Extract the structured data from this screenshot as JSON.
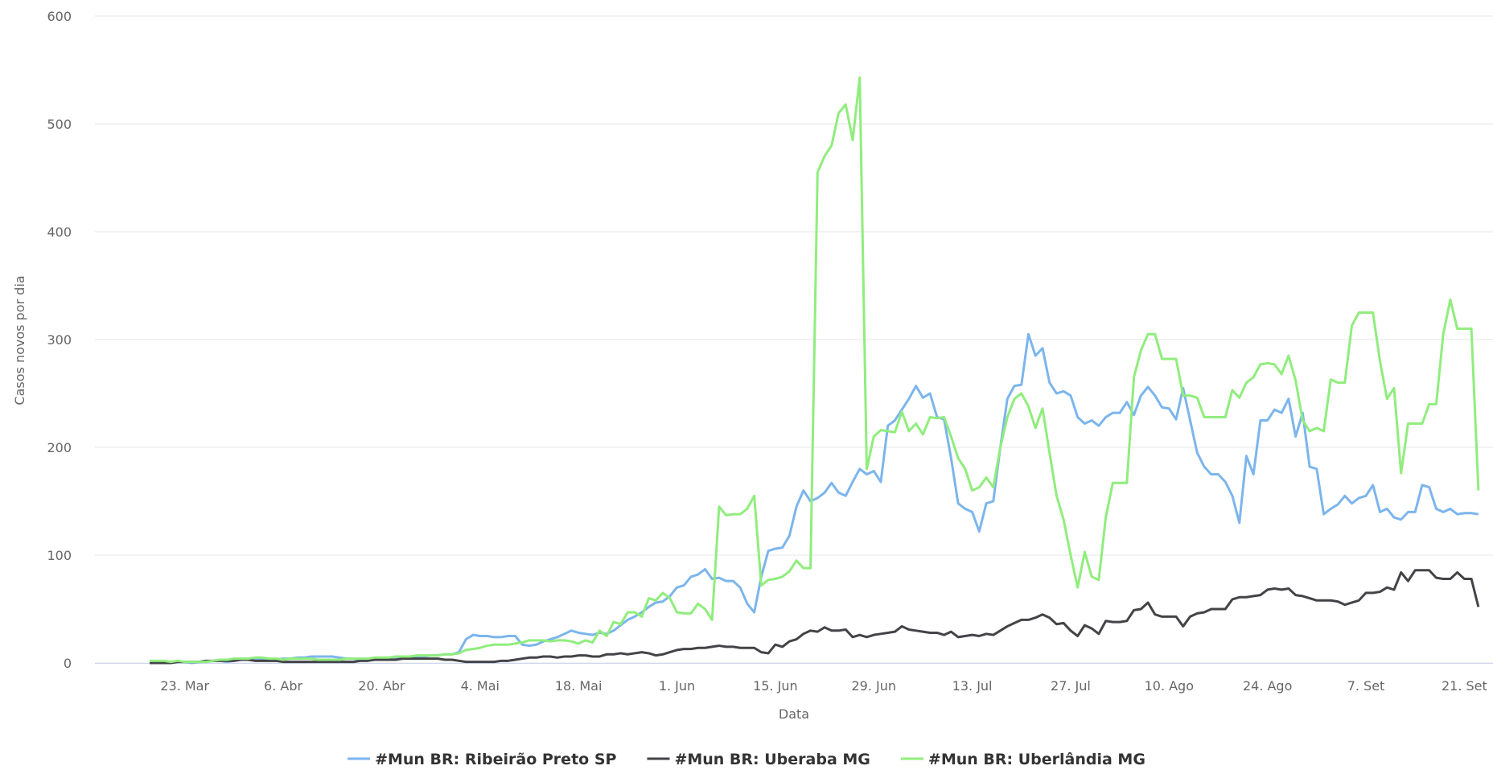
{
  "chart_data": {
    "type": "line",
    "y_axis_label": "Casos novos por dia",
    "x_axis_label": "Data",
    "ylim": [
      0,
      600
    ],
    "yticks": [
      0,
      100,
      200,
      300,
      400,
      500,
      600
    ],
    "grid": true,
    "legend": "bottom",
    "categories": [
      null,
      null,
      null,
      null,
      null,
      "23. Mar",
      null,
      null,
      null,
      null,
      null,
      null,
      null,
      null,
      null,
      null,
      null,
      null,
      null,
      "6. Abr",
      null,
      null,
      null,
      null,
      null,
      null,
      null,
      null,
      null,
      null,
      null,
      null,
      null,
      "20. Abr",
      null,
      null,
      null,
      null,
      null,
      null,
      null,
      null,
      null,
      null,
      null,
      null,
      null,
      "4. Mai",
      null,
      null,
      null,
      null,
      null,
      null,
      null,
      null,
      null,
      null,
      null,
      null,
      null,
      "18. Mai",
      null,
      null,
      null,
      null,
      null,
      null,
      null,
      null,
      null,
      null,
      null,
      null,
      null,
      "1. Jun",
      null,
      null,
      null,
      null,
      null,
      null,
      null,
      null,
      null,
      null,
      null,
      null,
      null,
      "15. Jun",
      null,
      null,
      null,
      null,
      null,
      null,
      null,
      null,
      null,
      null,
      null,
      null,
      null,
      "29. Jun",
      null,
      null,
      null,
      null,
      null,
      null,
      null,
      null,
      null,
      null,
      null,
      null,
      null,
      "13. Jul",
      null,
      null,
      null,
      null,
      null,
      null,
      null,
      null,
      null,
      null,
      null,
      null,
      null,
      "27. Jul",
      null,
      null,
      null,
      null,
      null,
      null,
      null,
      null,
      null,
      null,
      null,
      null,
      null,
      "10. Ago",
      null,
      null,
      null,
      null,
      null,
      null,
      null,
      null,
      null,
      null,
      null,
      null,
      null,
      "24. Ago",
      null,
      null,
      null,
      null,
      null,
      null,
      null,
      null,
      null,
      null,
      null,
      null,
      null,
      "7. Set",
      null,
      null,
      null,
      null,
      null,
      null,
      null,
      null,
      null,
      null,
      null,
      null,
      null,
      "21. Set",
      null,
      null
    ],
    "series": [
      {
        "name": "#Mun BR: Ribeirão Preto SP",
        "color": "#7cb5ec",
        "values": [
          0,
          0,
          0,
          1,
          1,
          1,
          0,
          1,
          1,
          2,
          2,
          1,
          2,
          3,
          3,
          4,
          3,
          2,
          3,
          4,
          4,
          5,
          5,
          6,
          6,
          6,
          6,
          5,
          4,
          4,
          3,
          3,
          4,
          4,
          4,
          5,
          5,
          6,
          6,
          6,
          7,
          7,
          8,
          8,
          10,
          22,
          26,
          25,
          25,
          24,
          24,
          25,
          25,
          17,
          16,
          17,
          20,
          22,
          24,
          27,
          30,
          28,
          27,
          26,
          28,
          27,
          30,
          35,
          40,
          43,
          47,
          52,
          56,
          57,
          62,
          70,
          72,
          80,
          82,
          87,
          78,
          79,
          76,
          76,
          70,
          55,
          47,
          80,
          104,
          106,
          107,
          118,
          145,
          160,
          150,
          153,
          158,
          167,
          158,
          155,
          168,
          180,
          175,
          178,
          168,
          220,
          225,
          235,
          245,
          257,
          246,
          250,
          228,
          226,
          190,
          148,
          143,
          140,
          122,
          148,
          150,
          200,
          245,
          257,
          258,
          305,
          285,
          292,
          260,
          250,
          252,
          248,
          228,
          222,
          225,
          220,
          228,
          232,
          232,
          242,
          230,
          248,
          256,
          248,
          237,
          236,
          226,
          255,
          225,
          195,
          182,
          175,
          175,
          168,
          155,
          130,
          192,
          175,
          225,
          225,
          235,
          232,
          245,
          210,
          232,
          182,
          180,
          138,
          143,
          147,
          155,
          148,
          153,
          155,
          165,
          140,
          143,
          135,
          133,
          140,
          140,
          165,
          163,
          143,
          140,
          143,
          138,
          139,
          139,
          138
        ]
      },
      {
        "name": "#Mun BR: Uberaba MG",
        "color": "#434348",
        "values": [
          0,
          0,
          0,
          0,
          1,
          1,
          1,
          1,
          2,
          2,
          2,
          2,
          2,
          3,
          3,
          2,
          2,
          2,
          2,
          1,
          1,
          1,
          1,
          1,
          1,
          1,
          1,
          1,
          1,
          1,
          2,
          2,
          3,
          3,
          3,
          3,
          4,
          4,
          4,
          4,
          4,
          4,
          3,
          3,
          2,
          1,
          1,
          1,
          1,
          1,
          2,
          2,
          3,
          4,
          5,
          5,
          6,
          6,
          5,
          6,
          6,
          7,
          7,
          6,
          6,
          8,
          8,
          9,
          8,
          9,
          10,
          9,
          7,
          8,
          10,
          12,
          13,
          13,
          14,
          14,
          15,
          16,
          15,
          15,
          14,
          14,
          14,
          10,
          9,
          17,
          15,
          20,
          22,
          27,
          30,
          29,
          33,
          30,
          30,
          31,
          24,
          26,
          24,
          26,
          27,
          28,
          29,
          34,
          31,
          30,
          29,
          28,
          28,
          26,
          29,
          24,
          25,
          26,
          25,
          27,
          26,
          30,
          34,
          37,
          40,
          40,
          42,
          45,
          42,
          36,
          37,
          30,
          25,
          35,
          32,
          27,
          39,
          38,
          38,
          39,
          49,
          50,
          56,
          45,
          43,
          43,
          43,
          34,
          43,
          46,
          47,
          50,
          50,
          50,
          59,
          61,
          61,
          62,
          63,
          68,
          69,
          68,
          69,
          63,
          62,
          60,
          58,
          58,
          58,
          57,
          54,
          56,
          58,
          65,
          65,
          66,
          70,
          68,
          84,
          76,
          86,
          86,
          86,
          79,
          78,
          78,
          84,
          78,
          78,
          52
        ]
      },
      {
        "name": "#Mun BR: Uberlândia MG",
        "color": "#90ed7d",
        "values": [
          2,
          2,
          2,
          1,
          2,
          1,
          1,
          1,
          1,
          2,
          3,
          3,
          4,
          4,
          4,
          5,
          5,
          4,
          4,
          3,
          4,
          4,
          4,
          4,
          3,
          3,
          3,
          3,
          4,
          4,
          4,
          4,
          5,
          5,
          5,
          6,
          6,
          6,
          7,
          7,
          7,
          7,
          8,
          8,
          9,
          12,
          13,
          14,
          16,
          17,
          17,
          17,
          18,
          19,
          21,
          21,
          21,
          20,
          21,
          21,
          20,
          18,
          21,
          19,
          30,
          25,
          38,
          36,
          47,
          47,
          43,
          60,
          58,
          65,
          60,
          47,
          46,
          46,
          55,
          50,
          40,
          145,
          137,
          138,
          138,
          143,
          155,
          72,
          77,
          78,
          80,
          85,
          95,
          88,
          88,
          455,
          470,
          480,
          510,
          518,
          485,
          543,
          180,
          210,
          216,
          215,
          214,
          233,
          215,
          222,
          212,
          228,
          227,
          228,
          210,
          190,
          180,
          160,
          163,
          172,
          163,
          200,
          228,
          245,
          250,
          238,
          218,
          236,
          195,
          155,
          133,
          100,
          70,
          103,
          80,
          77,
          135,
          167,
          167,
          167,
          265,
          290,
          305,
          305,
          282,
          282,
          282,
          248,
          248,
          246,
          228,
          228,
          228,
          228,
          253,
          246,
          260,
          265,
          277,
          278,
          277,
          268,
          285,
          262,
          225,
          215,
          218,
          215,
          263,
          260,
          260,
          313,
          325,
          325,
          325,
          280,
          245,
          255,
          176,
          222,
          222,
          222,
          240,
          240,
          305,
          337,
          310,
          310,
          310,
          160
        ]
      }
    ]
  }
}
